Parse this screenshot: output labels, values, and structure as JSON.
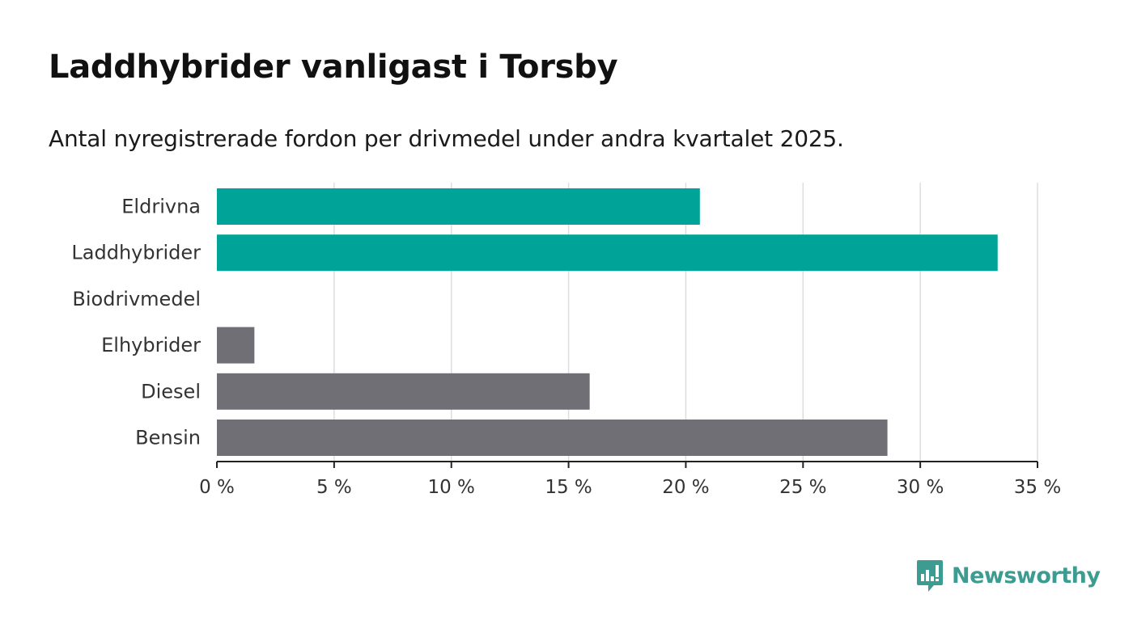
{
  "header": {
    "title": "Laddhybrider vanligast i Torsby",
    "subtitle": "Antal nyregistrerade fordon per drivmedel under andra kvartalet 2025."
  },
  "brand": {
    "name": "Newsworthy",
    "icon": "bar-chart-speech-bubble-icon",
    "color": "#3d9c91"
  },
  "chart_data": {
    "type": "bar",
    "orientation": "horizontal",
    "title": "Laddhybrider vanligast i Torsby",
    "subtitle": "Antal nyregistrerade fordon per drivmedel under andra kvartalet 2025.",
    "xlabel": "",
    "ylabel": "",
    "categories": [
      "Eldrivna",
      "Laddhybrider",
      "Biodrivmedel",
      "Elhybrider",
      "Diesel",
      "Bensin"
    ],
    "values": [
      20.6,
      33.3,
      0,
      1.6,
      15.9,
      28.6
    ],
    "colors": [
      "#00a398",
      "#00a398",
      "#00a398",
      "#706f76",
      "#706f76",
      "#706f76"
    ],
    "xlim": [
      0,
      35
    ],
    "ticks": [
      0,
      5,
      10,
      15,
      20,
      25,
      30,
      35
    ],
    "tick_labels": [
      "0 %",
      "5 %",
      "10 %",
      "15 %",
      "20 %",
      "25 %",
      "30 %",
      "35 %"
    ],
    "grid": "vertical",
    "legend": "none"
  }
}
